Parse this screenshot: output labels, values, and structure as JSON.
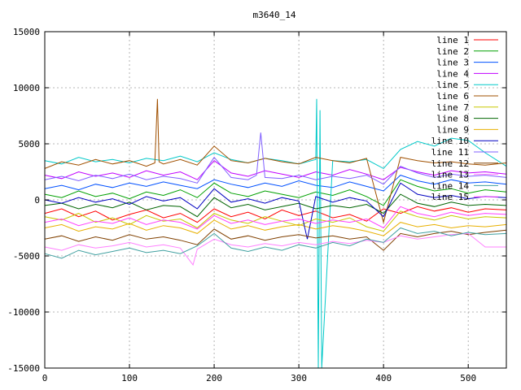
{
  "chart_data": {
    "type": "line",
    "title": "m3640_14",
    "xlabel": "",
    "ylabel": "",
    "xlim": [
      0,
      545
    ],
    "ylim": [
      -15000,
      15000
    ],
    "x_ticks": [
      0,
      100,
      200,
      300,
      400,
      500
    ],
    "y_ticks": [
      -15000,
      -10000,
      -5000,
      0,
      5000,
      10000,
      15000
    ],
    "grid": true,
    "legend_position": "top-right",
    "series": [
      {
        "name": "line 1",
        "color": "#ff0000",
        "x": [
          0,
          20,
          40,
          60,
          80,
          100,
          120,
          140,
          160,
          180,
          200,
          220,
          240,
          260,
          280,
          300,
          320,
          340,
          360,
          380,
          400,
          420,
          440,
          460,
          480,
          500,
          520,
          545
        ],
        "values": [
          -1200,
          -800,
          -1500,
          -1000,
          -1800,
          -1300,
          -900,
          -1600,
          -1200,
          -2000,
          -800,
          -1500,
          -1100,
          -1700,
          -900,
          -1400,
          -1000,
          -1600,
          -1300,
          -1900,
          -800,
          -1200,
          -600,
          -1000,
          -700,
          -1100,
          -800,
          -900
        ]
      },
      {
        "name": "line 2",
        "color": "#00a000",
        "x": [
          0,
          20,
          40,
          60,
          80,
          100,
          120,
          140,
          160,
          180,
          200,
          220,
          240,
          260,
          280,
          300,
          320,
          340,
          360,
          380,
          400,
          420,
          440,
          460,
          480,
          500,
          520,
          545
        ],
        "values": [
          500,
          200,
          800,
          300,
          600,
          100,
          700,
          400,
          900,
          200,
          1500,
          600,
          300,
          800,
          500,
          200,
          700,
          400,
          900,
          300,
          -500,
          1800,
          1200,
          800,
          1000,
          600,
          900,
          700
        ]
      },
      {
        "name": "line 3",
        "color": "#0050ff",
        "x": [
          0,
          20,
          40,
          60,
          80,
          100,
          120,
          140,
          160,
          180,
          200,
          220,
          240,
          260,
          280,
          300,
          320,
          340,
          360,
          380,
          400,
          420,
          440,
          460,
          480,
          500,
          520,
          545
        ],
        "values": [
          1000,
          1300,
          900,
          1400,
          1100,
          1500,
          1200,
          1600,
          1300,
          1000,
          1800,
          1400,
          1100,
          1500,
          1200,
          1700,
          1300,
          1100,
          1600,
          1200,
          800,
          2200,
          1700,
          1400,
          1800,
          1500,
          1600,
          1400
        ]
      },
      {
        "name": "line 4",
        "color": "#c000ff",
        "x": [
          0,
          20,
          40,
          60,
          80,
          100,
          120,
          140,
          160,
          180,
          200,
          220,
          240,
          260,
          280,
          300,
          320,
          340,
          360,
          380,
          400,
          420,
          440,
          460,
          480,
          500,
          520,
          545
        ],
        "values": [
          2200,
          1900,
          2500,
          2100,
          2400,
          2000,
          2600,
          2200,
          2500,
          1800,
          3500,
          2400,
          2100,
          2600,
          2300,
          2000,
          2500,
          2200,
          2700,
          2300,
          1800,
          2900,
          2500,
          2200,
          2600,
          2400,
          2500,
          2300
        ]
      },
      {
        "name": "line 5",
        "color": "#00c8c8",
        "x": [
          0,
          20,
          40,
          60,
          80,
          100,
          120,
          140,
          160,
          180,
          200,
          220,
          240,
          260,
          280,
          300,
          320,
          321,
          323,
          325,
          327,
          340,
          360,
          380,
          400,
          420,
          440,
          460,
          480,
          500,
          520,
          545
        ],
        "values": [
          3500,
          3200,
          3800,
          3400,
          3600,
          3300,
          3700,
          3500,
          3900,
          3400,
          4200,
          3600,
          3300,
          3700,
          3500,
          3200,
          3600,
          9000,
          -15000,
          8000,
          -15000,
          3500,
          3400,
          3600,
          2800,
          4500,
          5200,
          4800,
          5500,
          5300,
          4200,
          3000
        ]
      },
      {
        "name": "line 6",
        "color": "#a05000",
        "x": [
          0,
          20,
          40,
          60,
          80,
          100,
          120,
          130,
          133,
          135,
          140,
          160,
          180,
          200,
          220,
          240,
          260,
          280,
          300,
          320,
          340,
          360,
          380,
          400,
          420,
          440,
          460,
          480,
          500,
          520,
          545
        ],
        "values": [
          2800,
          3400,
          3100,
          3600,
          3200,
          3500,
          3000,
          3300,
          9000,
          3400,
          3200,
          3600,
          3100,
          4800,
          3500,
          3300,
          3700,
          3400,
          3200,
          3800,
          3500,
          3300,
          3700,
          -2000,
          3800,
          3500,
          3300,
          3400,
          3200,
          3100,
          3300
        ]
      },
      {
        "name": "line 7",
        "color": "#c8c800",
        "x": [
          0,
          20,
          40,
          60,
          80,
          100,
          120,
          140,
          160,
          180,
          200,
          220,
          240,
          260,
          280,
          300,
          320,
          340,
          360,
          380,
          400,
          420,
          440,
          460,
          480,
          500,
          520,
          545
        ],
        "values": [
          -1500,
          -1800,
          -1200,
          -2000,
          -1600,
          -2200,
          -1400,
          -1900,
          -1700,
          -2500,
          -1200,
          -1800,
          -2100,
          -1500,
          -1900,
          -2300,
          -1700,
          -2000,
          -1600,
          -2400,
          -2800,
          -1000,
          -1500,
          -1800,
          -1400,
          -1700,
          -1500,
          -1600
        ]
      },
      {
        "name": "line 8",
        "color": "#006400",
        "x": [
          0,
          20,
          40,
          60,
          80,
          100,
          120,
          140,
          160,
          180,
          200,
          220,
          240,
          260,
          280,
          300,
          320,
          340,
          360,
          380,
          400,
          420,
          440,
          460,
          480,
          500,
          520,
          545
        ],
        "values": [
          -500,
          -300,
          -800,
          -400,
          -700,
          -200,
          -900,
          -500,
          -600,
          -1500,
          200,
          -700,
          -400,
          -900,
          -600,
          -300,
          -800,
          -500,
          -700,
          -400,
          -1200,
          500,
          -300,
          -600,
          -200,
          -500,
          -400,
          -500
        ]
      },
      {
        "name": "line 9",
        "color": "#e8b000",
        "x": [
          0,
          20,
          40,
          60,
          80,
          100,
          120,
          140,
          160,
          180,
          200,
          220,
          240,
          260,
          280,
          300,
          320,
          340,
          360,
          380,
          400,
          420,
          440,
          460,
          480,
          500,
          520,
          545
        ],
        "values": [
          -2500,
          -2200,
          -2800,
          -2400,
          -2600,
          -2100,
          -2700,
          -2300,
          -2500,
          -3000,
          -1800,
          -2600,
          -2300,
          -2700,
          -2400,
          -2200,
          -2600,
          -2300,
          -2500,
          -2800,
          -3200,
          -2000,
          -2400,
          -2200,
          -2500,
          -2300,
          -2400,
          -2200
        ]
      },
      {
        "name": "line 10",
        "color": "#0000c0",
        "x": [
          0,
          20,
          40,
          60,
          80,
          100,
          120,
          140,
          160,
          180,
          200,
          220,
          240,
          260,
          280,
          300,
          310,
          320,
          340,
          360,
          380,
          400,
          420,
          440,
          460,
          480,
          500,
          520,
          545
        ],
        "values": [
          0,
          -300,
          200,
          -200,
          100,
          -400,
          300,
          -100,
          200,
          -800,
          1000,
          -200,
          100,
          -300,
          200,
          -100,
          -3500,
          300,
          -200,
          200,
          -100,
          -1500,
          1500,
          500,
          200,
          400,
          100,
          300,
          200
        ]
      },
      {
        "name": "line 11",
        "color": "#8060ff",
        "x": [
          0,
          20,
          40,
          60,
          80,
          100,
          120,
          140,
          160,
          180,
          200,
          220,
          240,
          250,
          255,
          260,
          280,
          300,
          320,
          340,
          360,
          380,
          400,
          420,
          440,
          460,
          480,
          500,
          520,
          545
        ],
        "values": [
          1800,
          2100,
          1700,
          2200,
          1900,
          2300,
          1800,
          2100,
          1900,
          1500,
          3800,
          2000,
          1800,
          2200,
          6000,
          2000,
          1900,
          2200,
          1800,
          2100,
          1900,
          2200,
          1400,
          3000,
          2400,
          2000,
          2300,
          2100,
          2200,
          2000
        ]
      },
      {
        "name": "line 12",
        "color": "#804000",
        "x": [
          0,
          20,
          40,
          60,
          80,
          100,
          120,
          140,
          160,
          180,
          200,
          220,
          240,
          260,
          280,
          300,
          320,
          340,
          360,
          380,
          400,
          420,
          440,
          460,
          480,
          500,
          520,
          545
        ],
        "values": [
          -3500,
          -3200,
          -3700,
          -3300,
          -3600,
          -3100,
          -3500,
          -3300,
          -3600,
          -4000,
          -2600,
          -3500,
          -3200,
          -3600,
          -3300,
          -3100,
          -3400,
          -3200,
          -3500,
          -3300,
          -4500,
          -3000,
          -3300,
          -3000,
          -2800,
          -3100,
          -2900,
          -2700
        ]
      },
      {
        "name": "line 13",
        "color": "#ff80ff",
        "x": [
          0,
          20,
          40,
          60,
          80,
          100,
          120,
          140,
          160,
          175,
          180,
          200,
          220,
          240,
          260,
          280,
          300,
          320,
          340,
          360,
          380,
          400,
          420,
          440,
          460,
          480,
          500,
          520,
          545
        ],
        "values": [
          -4200,
          -4500,
          -4000,
          -4300,
          -4100,
          -3800,
          -4200,
          -4000,
          -4300,
          -5800,
          -4400,
          -3500,
          -4000,
          -4200,
          -3900,
          -4100,
          -3800,
          -4000,
          -3700,
          -3900,
          -3600,
          -3800,
          -3200,
          -3500,
          -3300,
          -3100,
          -3000,
          -4200,
          -4200
        ]
      },
      {
        "name": "line 14",
        "color": "#40a0a0",
        "x": [
          0,
          20,
          40,
          60,
          80,
          100,
          120,
          140,
          160,
          180,
          200,
          220,
          240,
          260,
          280,
          300,
          320,
          340,
          360,
          380,
          400,
          420,
          440,
          460,
          480,
          500,
          520,
          545
        ],
        "values": [
          -4800,
          -5200,
          -4500,
          -4900,
          -4600,
          -4300,
          -4700,
          -4500,
          -4800,
          -4100,
          -3000,
          -4300,
          -4600,
          -4200,
          -4500,
          -4000,
          -4300,
          -3800,
          -4100,
          -3500,
          -3800,
          -2500,
          -3000,
          -2800,
          -3200,
          -2900,
          -3100,
          -3000
        ]
      },
      {
        "name": "line 15",
        "color": "#ff40ff",
        "x": [
          0,
          20,
          40,
          60,
          80,
          100,
          120,
          140,
          160,
          180,
          200,
          220,
          240,
          260,
          280,
          300,
          320,
          340,
          360,
          380,
          400,
          420,
          440,
          460,
          480,
          500,
          520,
          545
        ],
        "values": [
          -2000,
          -1700,
          -2300,
          -1900,
          -2100,
          -1600,
          -2200,
          -1800,
          -2000,
          -2600,
          -1400,
          -2100,
          -1800,
          -2200,
          -1900,
          -1700,
          -2100,
          -1800,
          -2000,
          -1700,
          -2500,
          -600,
          -1200,
          -1500,
          -1100,
          -1400,
          -1200,
          -1300
        ]
      }
    ]
  }
}
